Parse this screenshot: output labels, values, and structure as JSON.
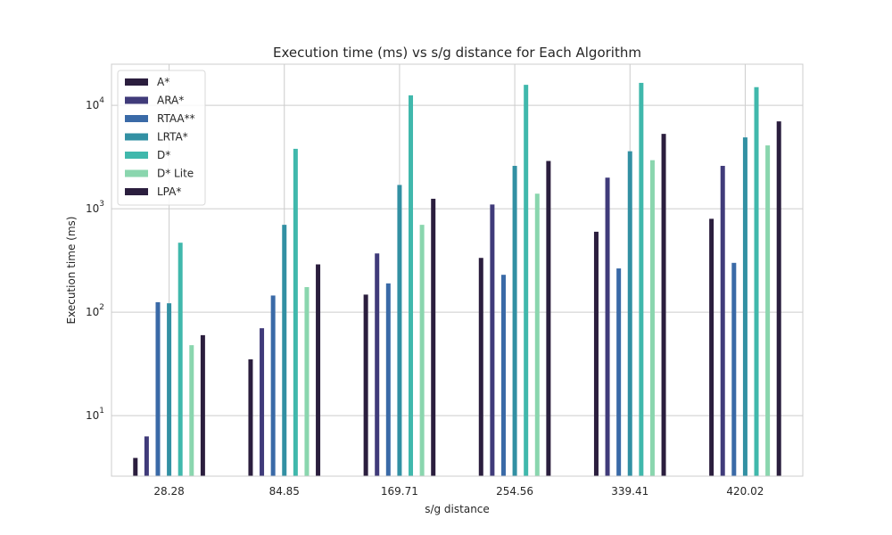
{
  "chart_data": {
    "type": "bar",
    "title": "Execution time (ms) vs s/g distance for Each Algorithm",
    "xlabel": "s/g distance",
    "ylabel": "Execution time (ms)",
    "yscale": "log",
    "ylim": [
      2.6,
      25000
    ],
    "yticks": [
      {
        "value": 10,
        "base": "10",
        "exp": "1"
      },
      {
        "value": 100,
        "base": "10",
        "exp": "2"
      },
      {
        "value": 1000,
        "base": "10",
        "exp": "3"
      },
      {
        "value": 10000,
        "base": "10",
        "exp": "4"
      }
    ],
    "grid": true,
    "legend_position": "top-left",
    "categories": [
      "28.28",
      "84.85",
      "169.71",
      "254.56",
      "339.41",
      "420.02"
    ],
    "series": [
      {
        "name": "A*",
        "color": "#2b1e3e",
        "values": [
          3.9,
          35,
          148,
          335,
          600,
          800
        ]
      },
      {
        "name": "ARA*",
        "color": "#403b7a",
        "values": [
          6.3,
          70,
          370,
          1100,
          2000,
          2600
        ]
      },
      {
        "name": "RTAA**",
        "color": "#3a6aa7",
        "values": [
          125,
          145,
          190,
          230,
          265,
          300
        ]
      },
      {
        "name": "LRTA*",
        "color": "#3290a3",
        "values": [
          122,
          700,
          1700,
          2600,
          3600,
          4900
        ]
      },
      {
        "name": "D*",
        "color": "#40b8ac",
        "values": [
          470,
          3800,
          12500,
          15800,
          16500,
          15000
        ]
      },
      {
        "name": "D* Lite",
        "color": "#8ad6ae",
        "values": [
          48,
          175,
          700,
          1400,
          2950,
          4100
        ]
      },
      {
        "name": "LPA*",
        "color": "#2b1e3e",
        "values": [
          60,
          290,
          1250,
          2900,
          5300,
          7000
        ]
      }
    ]
  }
}
